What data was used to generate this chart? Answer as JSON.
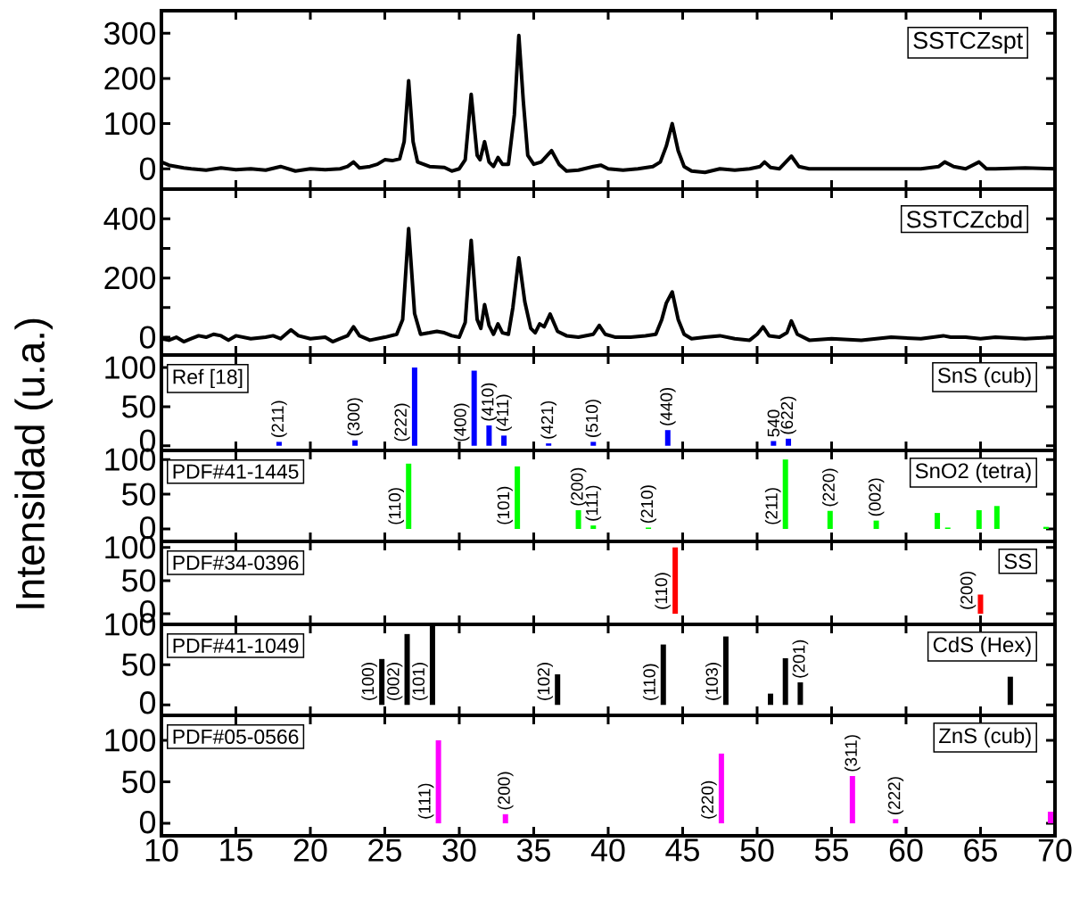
{
  "chart_data": [
    {
      "type": "line",
      "xlim": [
        10,
        70
      ],
      "xticks": [
        10,
        15,
        20,
        25,
        30,
        35,
        40,
        45,
        50,
        55,
        60,
        65,
        70
      ],
      "ylim": [
        -45,
        350
      ],
      "yticks": [
        0,
        100,
        200,
        300
      ],
      "tick_labels": "y",
      "legend": "top right",
      "x": [
        10,
        10.5,
        11,
        11.5,
        12,
        13,
        14,
        15,
        16,
        17,
        18,
        19,
        20,
        21,
        22,
        22.5,
        22.9,
        23.3,
        24,
        24.5,
        25,
        25.5,
        26,
        26.3,
        26.6,
        26.9,
        27.2,
        27.6,
        28,
        29,
        29.5,
        30,
        30.4,
        30.8,
        31.2,
        31.4,
        31.7,
        32.0,
        32.3,
        32.6,
        32.9,
        33.3,
        33.7,
        34.0,
        34.3,
        34.6,
        35,
        35.5,
        36.2,
        36.7,
        37.2,
        38,
        39,
        39.5,
        40,
        41,
        42,
        43,
        43.5,
        43.9,
        44.3,
        44.7,
        45.1,
        45.6,
        46.5,
        47.5,
        48.5,
        49.5,
        50.2,
        50.5,
        50.9,
        51.5,
        52.3,
        52.8,
        53.5,
        55,
        57,
        59,
        61,
        62.2,
        62.6,
        63.2,
        64,
        64.9,
        65.4,
        66,
        68,
        70
      ],
      "series": [
        {
          "name": "SSTCZspt",
          "color": "#000000",
          "values": [
            15,
            8,
            5,
            2,
            0,
            -3,
            2,
            -2,
            0,
            -3,
            5,
            -5,
            0,
            -2,
            0,
            5,
            15,
            2,
            5,
            10,
            20,
            18,
            22,
            60,
            195,
            60,
            15,
            10,
            5,
            3,
            -5,
            0,
            20,
            165,
            30,
            20,
            60,
            15,
            5,
            25,
            10,
            10,
            120,
            295,
            150,
            30,
            10,
            15,
            40,
            10,
            -5,
            -3,
            5,
            8,
            0,
            -3,
            0,
            5,
            15,
            50,
            100,
            40,
            5,
            -5,
            -8,
            0,
            -3,
            0,
            5,
            15,
            3,
            0,
            28,
            5,
            0,
            0,
            0,
            0,
            0,
            5,
            15,
            5,
            0,
            15,
            0,
            0,
            2,
            0
          ]
        }
      ]
    },
    {
      "type": "line",
      "xlim": [
        10,
        70
      ],
      "xticks": [
        10,
        15,
        20,
        25,
        30,
        35,
        40,
        45,
        50,
        55,
        60,
        65,
        70
      ],
      "ylim": [
        -60,
        500
      ],
      "yticks": [
        0,
        {
          "value": 100,
          "label": null
        },
        200,
        {
          "value": 300,
          "label": null
        },
        400
      ],
      "tick_labels": "y",
      "legend": "top right",
      "x": [
        10,
        10.5,
        11,
        11.5,
        12,
        12.5,
        13,
        13.5,
        14,
        14.5,
        15,
        16,
        17,
        17.5,
        18,
        18.7,
        19.2,
        20,
        21,
        21.5,
        22,
        22.5,
        22.9,
        23.3,
        24,
        25,
        25.8,
        26.2,
        26.6,
        27.0,
        27.4,
        28,
        28.5,
        29,
        29.5,
        30,
        30.4,
        30.8,
        31.2,
        31.45,
        31.7,
        32.0,
        32.3,
        32.6,
        32.9,
        33.3,
        33.6,
        34.0,
        34.4,
        34.8,
        35.1,
        35.4,
        35.7,
        36.1,
        36.6,
        37.2,
        38,
        39,
        39.4,
        39.8,
        40.5,
        41.5,
        42.5,
        43.2,
        43.6,
        43.9,
        44.3,
        44.7,
        45.1,
        45.6,
        46.5,
        47.5,
        48.5,
        49.5,
        50.0,
        50.4,
        50.8,
        51.5,
        52.0,
        52.3,
        52.7,
        53.5,
        55,
        57,
        59,
        61,
        62.5,
        63,
        64,
        65,
        66,
        68,
        70
      ],
      "series": [
        {
          "name": "SSTCZcbd",
          "color": "#000000",
          "values": [
            -5,
            -10,
            0,
            -15,
            -5,
            5,
            0,
            10,
            5,
            -10,
            5,
            -5,
            0,
            5,
            -5,
            25,
            5,
            -5,
            0,
            -15,
            -5,
            5,
            35,
            5,
            -10,
            0,
            10,
            60,
            367,
            80,
            10,
            15,
            20,
            15,
            5,
            0,
            50,
            327,
            60,
            30,
            110,
            40,
            10,
            45,
            15,
            10,
            100,
            268,
            120,
            30,
            15,
            45,
            35,
            78,
            20,
            5,
            0,
            10,
            40,
            10,
            0,
            0,
            5,
            10,
            60,
            115,
            153,
            60,
            10,
            -5,
            0,
            5,
            -5,
            -10,
            10,
            35,
            5,
            0,
            15,
            55,
            10,
            -10,
            -5,
            -10,
            0,
            -5,
            5,
            0,
            0,
            -5,
            0,
            -5,
            0
          ]
        }
      ]
    },
    {
      "type": "bar",
      "xlim": [
        10,
        70
      ],
      "xticks": [
        10,
        15,
        20,
        25,
        30,
        35,
        40,
        45,
        50,
        55,
        60,
        65,
        70
      ],
      "ylim": [
        -6,
        116
      ],
      "yticks": [
        0,
        50,
        100
      ],
      "tick_labels": "y",
      "x": [
        17.9,
        23.0,
        27.0,
        31.0,
        32.0,
        33.0,
        36.0,
        39.0,
        44.0,
        51.1,
        52.1
      ],
      "series": [
        {
          "color": "#0000ff",
          "values": [
            5,
            7,
            100,
            96,
            26,
            13,
            3,
            5,
            20,
            6,
            9
          ]
        }
      ],
      "annotations": [
        "Ref [18]",
        "SnS (cub)",
        {
          "text": "(211)",
          "x": 17.9,
          "y": 5
        },
        {
          "text": "(300)",
          "x": 23.0,
          "y": 7
        },
        {
          "text": "(222)",
          "x": 27.0,
          "y": 100
        },
        {
          "text": "(400)",
          "x": 31.0,
          "y": 96
        },
        {
          "text": "(410)",
          "x": 32.0,
          "y": 26
        },
        {
          "text": "(411)",
          "x": 33.0,
          "y": 13
        },
        {
          "text": "(421)",
          "x": 36.0,
          "y": 3
        },
        {
          "text": "(510)",
          "x": 39.0,
          "y": 5
        },
        {
          "text": "(440)",
          "x": 44.0,
          "y": 20
        },
        {
          "text": "540",
          "x": 51.1,
          "y": 6
        },
        {
          "text": "(622)",
          "x": 52.1,
          "y": 9
        }
      ]
    },
    {
      "type": "bar",
      "xlim": [
        10,
        70
      ],
      "xticks": [
        10,
        15,
        20,
        25,
        30,
        35,
        40,
        45,
        50,
        55,
        60,
        65,
        70
      ],
      "ylim": [
        -18,
        113
      ],
      "yticks": [
        0,
        50,
        100
      ],
      "tick_labels": "y",
      "ylabel": "Intensidad (u.a.)",
      "x": [
        26.6,
        33.9,
        38.0,
        39.0,
        42.7,
        51.9,
        54.9,
        58.0,
        62.1,
        62.8,
        64.9,
        66.1,
        69.4
      ],
      "series": [
        {
          "color": "#00ff00",
          "values": [
            94,
            90,
            27,
            5,
            2,
            100,
            26,
            12,
            23,
            2,
            27,
            33,
            3
          ]
        }
      ],
      "annotations": [
        "PDF#41-1445",
        "SnO2 (tetra)",
        {
          "text": "(110)",
          "x": 26.6,
          "y": 94
        },
        {
          "text": "(101)",
          "x": 33.9,
          "y": 90
        },
        {
          "text": "(200)",
          "x": 38.0,
          "y": 27
        },
        {
          "text": "(111)",
          "x": 39.0,
          "y": 5
        },
        {
          "text": "(210)",
          "x": 42.7,
          "y": 2
        },
        {
          "text": "(211)",
          "x": 51.9,
          "y": 100
        },
        {
          "text": "(220)",
          "x": 54.9,
          "y": 26
        },
        {
          "text": "(002)",
          "x": 58.0,
          "y": 12
        }
      ]
    },
    {
      "type": "bar",
      "xlim": [
        10,
        70
      ],
      "xticks": [
        10,
        15,
        20,
        25,
        30,
        35,
        40,
        45,
        50,
        55,
        60,
        65,
        70
      ],
      "ylim": [
        -16,
        109
      ],
      "yticks": [
        0,
        50,
        100
      ],
      "tick_labels": "y",
      "x": [
        44.5,
        65.0
      ],
      "series": [
        {
          "color": "#ff0000",
          "values": [
            100,
            29
          ]
        }
      ],
      "annotations": [
        "PDF#34-0396",
        "SS",
        {
          "text": "(110)",
          "x": 44.5,
          "y": 100
        },
        {
          "text": "(200)",
          "x": 65.0,
          "y": 29
        }
      ]
    },
    {
      "type": "bar",
      "xlim": [
        10,
        70
      ],
      "xticks": [
        10,
        15,
        20,
        25,
        30,
        35,
        40,
        45,
        50,
        55,
        60,
        65,
        70
      ],
      "ylim": [
        -13,
        100
      ],
      "yticks": [
        0,
        50,
        100
      ],
      "tick_labels": "y",
      "x": [
        24.8,
        26.5,
        28.2,
        36.6,
        43.7,
        47.9,
        50.9,
        51.9,
        52.9,
        67.0
      ],
      "series": [
        {
          "color": "#000000",
          "values": [
            57,
            88,
            100,
            38,
            75,
            85,
            14,
            58,
            28,
            35
          ]
        }
      ],
      "annotations": [
        "PDF#41-1049",
        "CdS (Hex)",
        {
          "text": "(100)",
          "x": 24.8,
          "y": 57
        },
        {
          "text": "(002)",
          "x": 26.5,
          "y": 88
        },
        {
          "text": "(101)",
          "x": 28.2,
          "y": 100
        },
        {
          "text": "(102)",
          "x": 36.6,
          "y": 38
        },
        {
          "text": "(110)",
          "x": 43.7,
          "y": 75
        },
        {
          "text": "(103)",
          "x": 47.9,
          "y": 85
        },
        {
          "text": "(201)",
          "x": 52.9,
          "y": 28
        }
      ]
    },
    {
      "type": "bar",
      "xlim": [
        10,
        70
      ],
      "xticks": [
        10,
        15,
        20,
        25,
        30,
        35,
        40,
        45,
        50,
        55,
        60,
        65,
        70
      ],
      "ylim": [
        -15,
        130
      ],
      "yticks": [
        0,
        50,
        100
      ],
      "x": [
        28.6,
        33.1,
        47.6,
        56.4,
        59.3,
        69.7
      ],
      "series": [
        {
          "color": "#ff00ff",
          "values": [
            100,
            11,
            84,
            57,
            5,
            14
          ]
        }
      ],
      "annotations": [
        "PDF#05-0566",
        "ZnS (cub)",
        {
          "text": "(111)",
          "x": 28.6,
          "y": 100
        },
        {
          "text": "(200)",
          "x": 33.1,
          "y": 11
        },
        {
          "text": "(220)",
          "x": 47.6,
          "y": 84
        },
        {
          "text": "(311)",
          "x": 56.4,
          "y": 57
        },
        {
          "text": "(222)",
          "x": 59.3,
          "y": 5
        }
      ]
    }
  ]
}
